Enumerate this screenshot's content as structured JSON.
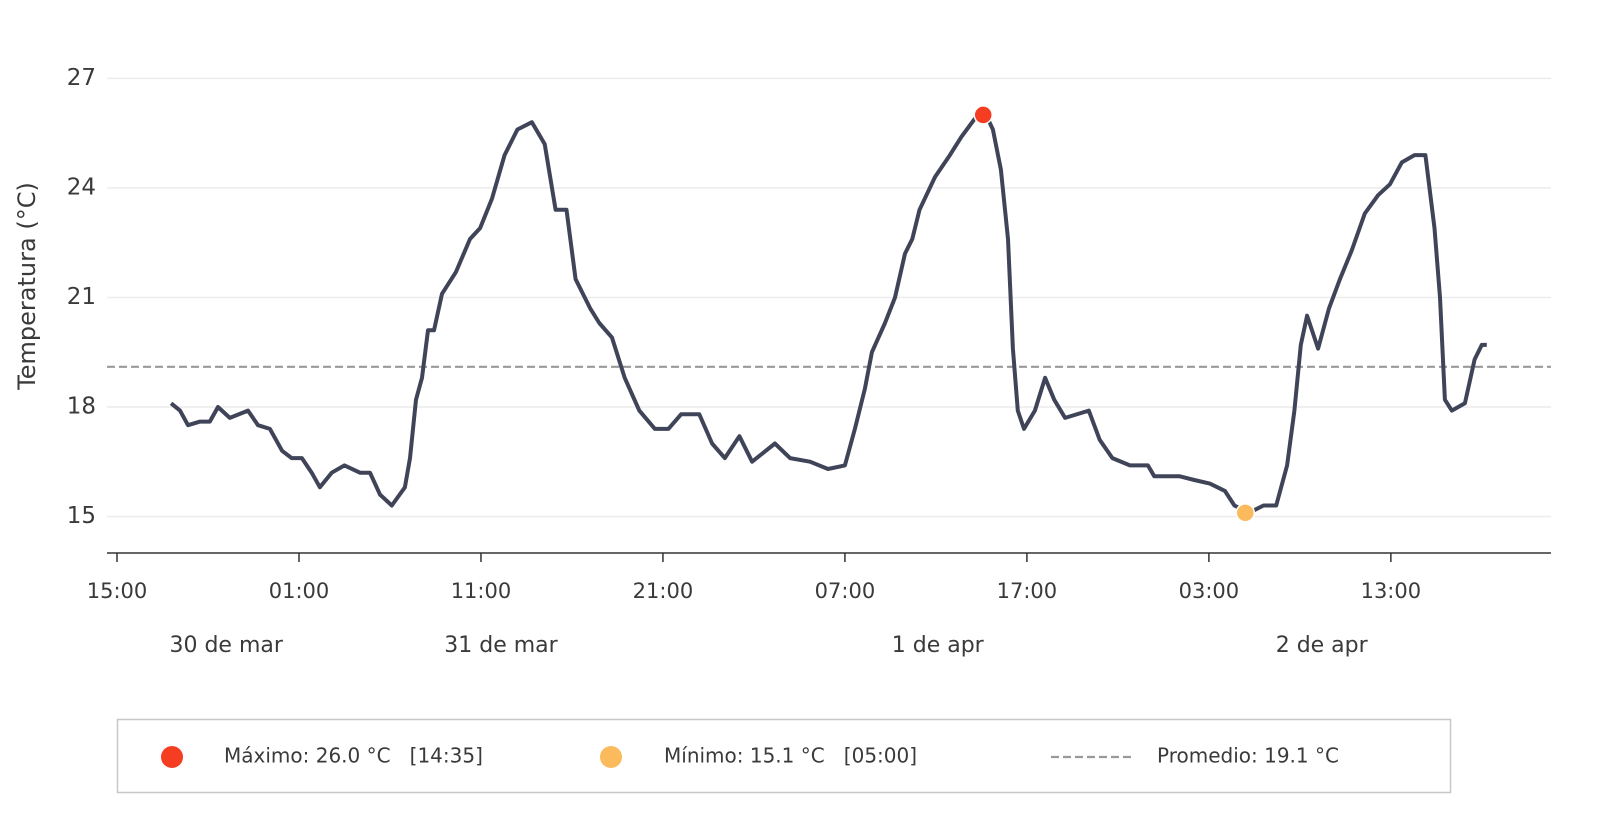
{
  "chart_data": {
    "type": "line",
    "y_label": "Temperatura (°C)",
    "x": [
      2.97,
      3.46,
      3.9,
      4.56,
      5.1,
      5.55,
      6.2,
      7.2,
      7.75,
      8.4,
      9.07,
      9.6,
      10.16,
      10.7,
      11.15,
      11.8,
      12.5,
      13.35,
      13.9,
      14.45,
      15.1,
      15.82,
      16.1,
      16.43,
      16.76,
      17.09,
      17.42,
      17.86,
      18.63,
      19.4,
      19.95,
      20.6,
      21.3,
      22.0,
      22.8,
      23.5,
      24.1,
      24.7,
      25.2,
      26.0,
      26.5,
      27.2,
      27.9,
      28.7,
      29.56,
      30.3,
      31.0,
      32.0,
      32.7,
      33.4,
      34.2,
      34.9,
      36.15,
      36.98,
      38.08,
      39.07,
      40.0,
      40.55,
      41.1,
      41.48,
      42.2,
      42.75,
      43.3,
      43.7,
      44.1,
      44.95,
      45.77,
      46.4,
      47.14,
      47.75,
      48.13,
      48.57,
      48.96,
      49.23,
      49.5,
      49.84,
      50.44,
      51.0,
      51.5,
      52.1,
      53.4,
      54.0,
      54.7,
      55.66,
      56.65,
      57.0,
      58.4,
      59.2,
      60.05,
      60.88,
      61.4,
      62.2,
      63.0,
      63.7,
      64.3,
      64.7,
      65.05,
      65.4,
      66.0,
      66.6,
      67.2,
      67.86,
      68.57,
      69.3,
      69.95,
      70.6,
      71.3,
      71.9,
      72.4,
      72.7,
      72.97,
      73.35,
      74.07,
      74.6,
      75.0,
      75.27
    ],
    "series": [
      {
        "name": "Temperatura",
        "color": "#3f4458",
        "values": [
          18.1,
          17.9,
          17.5,
          17.6,
          17.6,
          18.0,
          17.7,
          17.9,
          17.5,
          17.4,
          16.8,
          16.6,
          16.6,
          16.2,
          15.8,
          16.2,
          16.4,
          16.2,
          16.2,
          15.6,
          15.3,
          15.8,
          16.6,
          18.2,
          18.8,
          20.1,
          20.1,
          21.1,
          21.7,
          22.6,
          22.9,
          23.7,
          24.9,
          25.6,
          25.8,
          25.2,
          23.4,
          23.4,
          21.5,
          20.7,
          20.3,
          19.9,
          18.8,
          17.9,
          17.4,
          17.4,
          17.8,
          17.8,
          17.0,
          16.6,
          17.2,
          16.5,
          17.0,
          16.6,
          16.5,
          16.3,
          16.4,
          17.4,
          18.5,
          19.5,
          20.3,
          21.0,
          22.2,
          22.6,
          23.4,
          24.3,
          24.9,
          25.4,
          25.9,
          26.0,
          25.6,
          24.5,
          22.6,
          19.6,
          17.9,
          17.4,
          17.9,
          18.8,
          18.2,
          17.7,
          17.9,
          17.1,
          16.6,
          16.4,
          16.4,
          16.1,
          16.1,
          16.0,
          15.9,
          15.7,
          15.3,
          15.1,
          15.3,
          15.3,
          16.4,
          17.9,
          19.7,
          20.5,
          19.6,
          20.7,
          21.5,
          22.3,
          23.3,
          23.8,
          24.1,
          24.7,
          24.9,
          24.9,
          22.9,
          21.0,
          18.2,
          17.9,
          18.1,
          19.3,
          19.7,
          19.7
        ]
      }
    ],
    "xlim": [
      -0.55,
      78.8
    ],
    "ylim": [
      14.0,
      28.6
    ],
    "yticks": [
      15,
      18,
      21,
      24,
      27
    ],
    "xticks": [
      {
        "value": 0,
        "label": "15:00"
      },
      {
        "value": 10,
        "label": "01:00"
      },
      {
        "value": 20,
        "label": "11:00"
      },
      {
        "value": 30,
        "label": "21:00"
      },
      {
        "value": 40,
        "label": "07:00"
      },
      {
        "value": 50,
        "label": "17:00"
      },
      {
        "value": 60,
        "label": "03:00"
      },
      {
        "value": 70,
        "label": "13:00"
      }
    ],
    "date_labels": [
      {
        "value": 6,
        "label": "30 de mar"
      },
      {
        "value": 21.1,
        "label": "31 de mar"
      },
      {
        "value": 45.1,
        "label": "1 de apr"
      },
      {
        "value": 66.2,
        "label": "2 de apr"
      }
    ],
    "grid": true,
    "maximum": {
      "x": 47.6,
      "value": 26.0,
      "color": "#f53d22",
      "label": "Máximo: 26.0 °C   [14:35]"
    },
    "minimum": {
      "x": 62.0,
      "value": 15.1,
      "color": "#fbbb5c",
      "label": "Mínimo: 15.1 °C   [05:00]"
    },
    "average": {
      "value": 19.1,
      "color": "#999999",
      "label": "Promedio: 19.1 °C"
    }
  }
}
